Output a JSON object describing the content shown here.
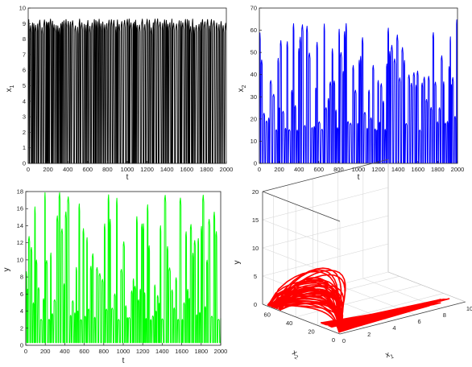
{
  "chart_data": [
    {
      "type": "line",
      "xlabel": "t",
      "ylabel": "x",
      "ylabel_sub": "1",
      "xlim": [
        0,
        2000
      ],
      "ylim": [
        0,
        10
      ],
      "xticks": [
        "0",
        "200",
        "400",
        "600",
        "800",
        "1000",
        "1200",
        "1400",
        "1600",
        "1800",
        "2000"
      ],
      "yticks": [
        "0",
        "1",
        "2",
        "3",
        "4",
        "5",
        "6",
        "7",
        "8",
        "9",
        "10"
      ],
      "grid": false,
      "series_color": "#000000",
      "signal": {
        "peak_low": 8.6,
        "peak_high": 9.3,
        "base": 0.0,
        "period": 20
      }
    },
    {
      "type": "line",
      "xlabel": "t",
      "ylabel": "x",
      "ylabel_sub": "2",
      "xlim": [
        0,
        2000
      ],
      "ylim": [
        0,
        70
      ],
      "xticks": [
        "0",
        "200",
        "400",
        "600",
        "800",
        "1000",
        "1200",
        "1400",
        "1600",
        "1800",
        "2000"
      ],
      "yticks": [
        "0",
        "10",
        "20",
        "30",
        "40",
        "50",
        "60",
        "70"
      ],
      "grid": false,
      "series_color": "#0000ff",
      "signal": {
        "peak_low": 15,
        "peak_high": 66,
        "base": 0.3,
        "period": 20
      }
    },
    {
      "type": "line",
      "xlabel": "t",
      "ylabel": "y",
      "xlim": [
        0,
        2000
      ],
      "ylim": [
        0,
        18
      ],
      "xticks": [
        "0",
        "200",
        "400",
        "600",
        "800",
        "1000",
        "1200",
        "1400",
        "1600",
        "1800",
        "2000"
      ],
      "yticks": [
        "0",
        "2",
        "4",
        "6",
        "8",
        "10",
        "12",
        "14",
        "16",
        "18"
      ],
      "grid": false,
      "series_color": "#00ff00",
      "signal": {
        "peak_low": 3,
        "peak_high": 18,
        "base": 0.3,
        "period": 20
      }
    },
    {
      "type": "line3d",
      "xlabel": "x",
      "xlabel_sub": "1",
      "ylabel": "x",
      "ylabel_sub": "2",
      "zlabel": "y",
      "x1_range": [
        0,
        10
      ],
      "x2_range": [
        0,
        70
      ],
      "z_range": [
        0,
        20
      ],
      "x1_ticks": [
        "0",
        "2",
        "4",
        "6",
        "8",
        "10"
      ],
      "x2_ticks": [
        "0",
        "20",
        "40",
        "60"
      ],
      "z_ticks": [
        "0",
        "5",
        "10",
        "15",
        "20"
      ],
      "grid": true,
      "series_color": "#ff0000"
    }
  ]
}
